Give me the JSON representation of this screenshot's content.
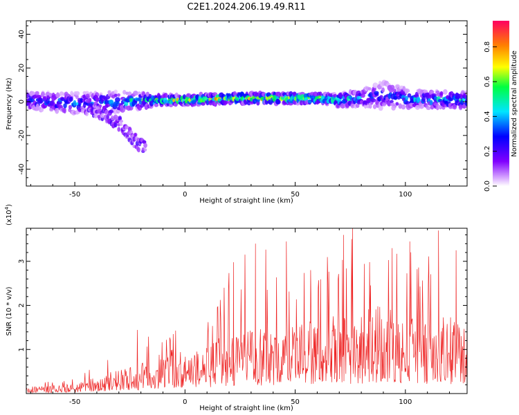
{
  "figure": {
    "title": "C2E1.2024.206.19.49.R11"
  },
  "chart_data": [
    {
      "type": "heatmap",
      "xlabel": "Height of straight line (km)",
      "ylabel": "Frequency (Hz)",
      "xlim": [
        -72,
        128
      ],
      "ylim": [
        -50,
        48
      ],
      "xticks": [
        -50,
        0,
        50,
        100
      ],
      "yticks": [
        -40,
        -20,
        0,
        20,
        40
      ],
      "grid": false,
      "colorbar": {
        "label": "Normalized spectral amplitude",
        "range": [
          0,
          0.95
        ],
        "ticks": [
          0.0,
          0.2,
          0.4,
          0.6,
          0.8
        ],
        "tick_labels": [
          "0.0",
          "0.2",
          "0.4",
          "0.6",
          "0.8"
        ],
        "colors": [
          "#ffffff",
          "#d8a8ff",
          "#8000ff",
          "#0000ff",
          "#00e5ff",
          "#00ff40",
          "#ffff00",
          "#ff8000",
          "#ff0060"
        ]
      },
      "bands": [
        {
          "x": [
            -72,
            -50,
            -30,
            -10,
            0,
            20,
            40,
            60,
            70,
            80,
            90,
            100,
            110,
            128
          ],
          "center": [
            1,
            -1,
            0,
            1,
            1,
            2,
            2,
            2,
            1,
            2,
            4,
            2,
            1,
            1
          ],
          "halfwidth": [
            5,
            6,
            6,
            3,
            3,
            3,
            3,
            3,
            4,
            5,
            8,
            6,
            5,
            5
          ],
          "amplitude": [
            0.45,
            0.45,
            0.5,
            0.7,
            0.75,
            0.75,
            0.75,
            0.7,
            0.55,
            0.45,
            0.4,
            0.45,
            0.5,
            0.5
          ]
        }
      ],
      "branches": [
        {
          "x": [
            -45,
            -35,
            -28,
            -22,
            -18
          ],
          "center": [
            -3,
            -8,
            -15,
            -24,
            -28
          ],
          "halfwidth": 4,
          "amplitude": 0.3
        }
      ]
    },
    {
      "type": "line",
      "xlabel": "Height of straight line (km)",
      "ylabel": "SNR (10 * v/v)",
      "scale_label": "(x10^4)",
      "xlim": [
        -72,
        128
      ],
      "ylim": [
        0,
        3.75
      ],
      "xticks": [
        -50,
        0,
        50,
        100
      ],
      "yticks": [
        1,
        2,
        3
      ],
      "grid": false,
      "series": [
        {
          "color": "#ee2222",
          "envelope": {
            "x": [
              -72,
              -50,
              -40,
              -30,
              -20,
              -10,
              0,
              10,
              20,
              30,
              40,
              50,
              60,
              70,
              80,
              90,
              100,
              110,
              120,
              128
            ],
            "mean": [
              0.12,
              0.18,
              0.3,
              0.45,
              0.55,
              0.75,
              0.9,
              0.95,
              1.05,
              1.15,
              1.25,
              1.3,
              1.35,
              1.45,
              1.5,
              1.65,
              1.55,
              1.45,
              1.4,
              1.35
            ],
            "peak": [
              0.25,
              0.35,
              0.8,
              1.4,
              1.7,
              1.3,
              1.6,
              1.6,
              3.0,
              3.4,
              3.4,
              3.0,
              2.8,
              3.7,
              3.7,
              3.2,
              3.5,
              3.2,
              3.7,
              3.6
            ]
          },
          "peaks": [
            {
              "x": 22,
              "y": 2.98
            },
            {
              "x": 32,
              "y": 3.4
            },
            {
              "x": 46,
              "y": 3.45
            },
            {
              "x": 57,
              "y": 2.8
            },
            {
              "x": 72,
              "y": 3.6
            },
            {
              "x": 76,
              "y": 3.75
            },
            {
              "x": 94,
              "y": 3.3
            },
            {
              "x": 102,
              "y": 3.45
            },
            {
              "x": 115,
              "y": 3.7
            },
            {
              "x": 123,
              "y": 3.25
            }
          ]
        }
      ]
    }
  ]
}
